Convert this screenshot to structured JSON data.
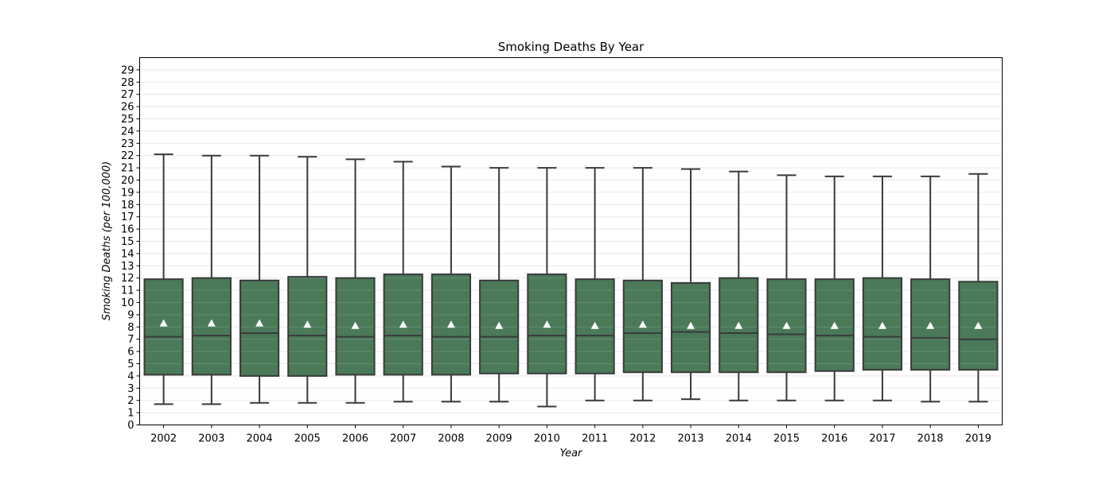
{
  "chart_data": {
    "type": "box",
    "title": "Smoking Deaths By Year",
    "xlabel": "Year",
    "ylabel": "Smoking Deaths (per 100,000)",
    "ylim": [
      0,
      30
    ],
    "yticks": [
      0,
      1,
      2,
      3,
      4,
      5,
      6,
      7,
      8,
      9,
      10,
      11,
      12,
      13,
      14,
      15,
      16,
      17,
      18,
      19,
      20,
      21,
      22,
      23,
      24,
      25,
      26,
      27,
      28,
      29
    ],
    "grid": "horizontal",
    "colors": {
      "box_fill": "#4a7a58",
      "line": "#3a3a3a",
      "mean_marker": "#ffffff",
      "grid": "#e8e8e8"
    },
    "categories": [
      "2002",
      "2003",
      "2004",
      "2005",
      "2006",
      "2007",
      "2008",
      "2009",
      "2010",
      "2011",
      "2012",
      "2013",
      "2014",
      "2015",
      "2016",
      "2017",
      "2018",
      "2019"
    ],
    "boxes": [
      {
        "whisker_low": 1.7,
        "q1": 4.1,
        "median": 7.2,
        "q3": 11.9,
        "whisker_high": 22.1,
        "mean": 8.3
      },
      {
        "whisker_low": 1.7,
        "q1": 4.1,
        "median": 7.3,
        "q3": 12.0,
        "whisker_high": 22.0,
        "mean": 8.3
      },
      {
        "whisker_low": 1.8,
        "q1": 4.0,
        "median": 7.5,
        "q3": 11.8,
        "whisker_high": 22.0,
        "mean": 8.3
      },
      {
        "whisker_low": 1.8,
        "q1": 4.0,
        "median": 7.3,
        "q3": 12.1,
        "whisker_high": 21.9,
        "mean": 8.2
      },
      {
        "whisker_low": 1.8,
        "q1": 4.1,
        "median": 7.2,
        "q3": 12.0,
        "whisker_high": 21.7,
        "mean": 8.1
      },
      {
        "whisker_low": 1.9,
        "q1": 4.1,
        "median": 7.3,
        "q3": 12.3,
        "whisker_high": 21.5,
        "mean": 8.2
      },
      {
        "whisker_low": 1.9,
        "q1": 4.1,
        "median": 7.2,
        "q3": 12.3,
        "whisker_high": 21.1,
        "mean": 8.2
      },
      {
        "whisker_low": 1.9,
        "q1": 4.2,
        "median": 7.2,
        "q3": 11.8,
        "whisker_high": 21.0,
        "mean": 8.1
      },
      {
        "whisker_low": 1.5,
        "q1": 4.2,
        "median": 7.3,
        "q3": 12.3,
        "whisker_high": 21.0,
        "mean": 8.2
      },
      {
        "whisker_low": 2.0,
        "q1": 4.2,
        "median": 7.3,
        "q3": 11.9,
        "whisker_high": 21.0,
        "mean": 8.1
      },
      {
        "whisker_low": 2.0,
        "q1": 4.3,
        "median": 7.5,
        "q3": 11.8,
        "whisker_high": 21.0,
        "mean": 8.2
      },
      {
        "whisker_low": 2.1,
        "q1": 4.3,
        "median": 7.6,
        "q3": 11.6,
        "whisker_high": 20.9,
        "mean": 8.1
      },
      {
        "whisker_low": 2.0,
        "q1": 4.3,
        "median": 7.5,
        "q3": 12.0,
        "whisker_high": 20.7,
        "mean": 8.1
      },
      {
        "whisker_low": 2.0,
        "q1": 4.3,
        "median": 7.4,
        "q3": 11.9,
        "whisker_high": 20.4,
        "mean": 8.1
      },
      {
        "whisker_low": 2.0,
        "q1": 4.4,
        "median": 7.3,
        "q3": 11.9,
        "whisker_high": 20.3,
        "mean": 8.1
      },
      {
        "whisker_low": 2.0,
        "q1": 4.5,
        "median": 7.2,
        "q3": 12.0,
        "whisker_high": 20.3,
        "mean": 8.1
      },
      {
        "whisker_low": 1.9,
        "q1": 4.5,
        "median": 7.1,
        "q3": 11.9,
        "whisker_high": 20.3,
        "mean": 8.1
      },
      {
        "whisker_low": 1.9,
        "q1": 4.5,
        "median": 7.0,
        "q3": 11.7,
        "whisker_high": 20.5,
        "mean": 8.1
      }
    ]
  }
}
